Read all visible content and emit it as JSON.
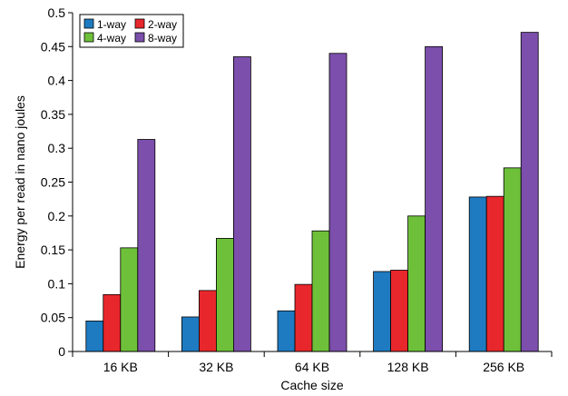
{
  "chart_data": {
    "type": "bar",
    "title": "",
    "xlabel": "Cache size",
    "ylabel": "Energy per read in nano joules",
    "categories": [
      "16 KB",
      "32 KB",
      "64 KB",
      "128 KB",
      "256 KB"
    ],
    "ylim": [
      0,
      0.5
    ],
    "yticks": [
      "0",
      "0.05",
      "0.1",
      "0.15",
      "0.2",
      "0.25",
      "0.3",
      "0.35",
      "0.4",
      "0.45",
      "0.5"
    ],
    "grid": false,
    "legend_position": "top-left",
    "series": [
      {
        "name": "1-way",
        "color": "#1f7bc1",
        "values": [
          0.045,
          0.051,
          0.06,
          0.118,
          0.228
        ]
      },
      {
        "name": "2-way",
        "color": "#e8272c",
        "values": [
          0.084,
          0.09,
          0.099,
          0.12,
          0.229
        ]
      },
      {
        "name": "4-way",
        "color": "#6ec03a",
        "values": [
          0.153,
          0.167,
          0.178,
          0.2,
          0.271
        ]
      },
      {
        "name": "8-way",
        "color": "#7b4fab",
        "values": [
          0.313,
          0.435,
          0.44,
          0.45,
          0.471
        ]
      }
    ]
  }
}
